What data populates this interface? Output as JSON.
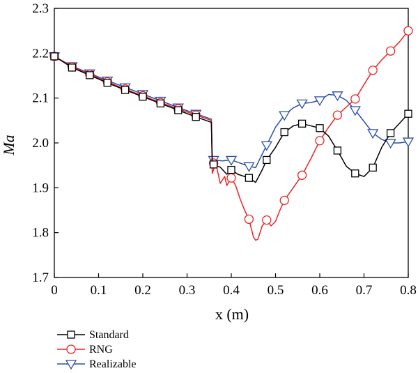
{
  "chart_data": {
    "type": "line",
    "title": "",
    "xlabel": "x (m)",
    "ylabel": "Ma",
    "xlim": [
      0,
      0.8
    ],
    "ylim": [
      1.7,
      2.3
    ],
    "x_ticks": [
      "0",
      "0.1",
      "0.2",
      "0.3",
      "0.4",
      "0.5",
      "0.6",
      "0.7",
      "0.8"
    ],
    "y_ticks": [
      "1.7",
      "1.8",
      "1.9",
      "2.0",
      "2.1",
      "2.2",
      "2.3"
    ],
    "grid": false,
    "legend_position": "below-left",
    "series": [
      {
        "name": "Standard",
        "color": "#000000",
        "marker": "square",
        "line": [
          [
            0,
            2.193
          ],
          [
            0.04,
            2.168
          ],
          [
            0.08,
            2.151
          ],
          [
            0.12,
            2.134
          ],
          [
            0.16,
            2.118
          ],
          [
            0.2,
            2.103
          ],
          [
            0.24,
            2.088
          ],
          [
            0.28,
            2.073
          ],
          [
            0.32,
            2.058
          ],
          [
            0.355,
            2.046
          ],
          [
            0.357,
            1.952
          ],
          [
            0.375,
            1.946
          ],
          [
            0.39,
            1.93
          ],
          [
            0.4,
            1.94
          ],
          [
            0.415,
            1.93
          ],
          [
            0.44,
            1.922
          ],
          [
            0.455,
            1.912
          ],
          [
            0.47,
            1.94
          ],
          [
            0.48,
            1.962
          ],
          [
            0.5,
            1.99
          ],
          [
            0.52,
            2.024
          ],
          [
            0.54,
            2.038
          ],
          [
            0.56,
            2.043
          ],
          [
            0.6,
            2.033
          ],
          [
            0.62,
            2.015
          ],
          [
            0.64,
            1.983
          ],
          [
            0.66,
            1.948
          ],
          [
            0.68,
            1.932
          ],
          [
            0.7,
            1.925
          ],
          [
            0.72,
            1.945
          ],
          [
            0.74,
            1.99
          ],
          [
            0.76,
            2.022
          ],
          [
            0.8,
            2.065
          ]
        ],
        "markers": [
          [
            0,
            2.193
          ],
          [
            0.04,
            2.168
          ],
          [
            0.08,
            2.151
          ],
          [
            0.12,
            2.134
          ],
          [
            0.16,
            2.118
          ],
          [
            0.2,
            2.103
          ],
          [
            0.24,
            2.088
          ],
          [
            0.28,
            2.073
          ],
          [
            0.32,
            2.058
          ],
          [
            0.36,
            1.952
          ],
          [
            0.4,
            1.94
          ],
          [
            0.44,
            1.922
          ],
          [
            0.48,
            1.962
          ],
          [
            0.52,
            2.024
          ],
          [
            0.56,
            2.043
          ],
          [
            0.6,
            2.033
          ],
          [
            0.64,
            1.983
          ],
          [
            0.68,
            1.932
          ],
          [
            0.72,
            1.945
          ],
          [
            0.76,
            2.022
          ],
          [
            0.8,
            2.065
          ]
        ]
      },
      {
        "name": "RNG",
        "color": "#ee2222",
        "marker": "circle",
        "line": [
          [
            0,
            2.193
          ],
          [
            0.04,
            2.17
          ],
          [
            0.08,
            2.153
          ],
          [
            0.12,
            2.136
          ],
          [
            0.16,
            2.12
          ],
          [
            0.2,
            2.105
          ],
          [
            0.24,
            2.09
          ],
          [
            0.28,
            2.076
          ],
          [
            0.32,
            2.062
          ],
          [
            0.355,
            2.05
          ],
          [
            0.357,
            1.932
          ],
          [
            0.365,
            1.955
          ],
          [
            0.375,
            1.91
          ],
          [
            0.385,
            1.925
          ],
          [
            0.39,
            1.905
          ],
          [
            0.4,
            1.922
          ],
          [
            0.41,
            1.905
          ],
          [
            0.42,
            1.875
          ],
          [
            0.43,
            1.85
          ],
          [
            0.44,
            1.83
          ],
          [
            0.45,
            1.79
          ],
          [
            0.455,
            1.783
          ],
          [
            0.46,
            1.785
          ],
          [
            0.47,
            1.815
          ],
          [
            0.48,
            1.828
          ],
          [
            0.49,
            1.815
          ],
          [
            0.5,
            1.825
          ],
          [
            0.51,
            1.85
          ],
          [
            0.52,
            1.872
          ],
          [
            0.54,
            1.9
          ],
          [
            0.56,
            1.928
          ],
          [
            0.58,
            1.965
          ],
          [
            0.6,
            2.005
          ],
          [
            0.62,
            2.035
          ],
          [
            0.64,
            2.062
          ],
          [
            0.66,
            2.08
          ],
          [
            0.68,
            2.098
          ],
          [
            0.7,
            2.13
          ],
          [
            0.72,
            2.162
          ],
          [
            0.74,
            2.185
          ],
          [
            0.76,
            2.205
          ],
          [
            0.78,
            2.225
          ],
          [
            0.8,
            2.25
          ]
        ],
        "markers": [
          [
            0,
            2.193
          ],
          [
            0.04,
            2.17
          ],
          [
            0.08,
            2.153
          ],
          [
            0.12,
            2.136
          ],
          [
            0.16,
            2.12
          ],
          [
            0.2,
            2.105
          ],
          [
            0.24,
            2.09
          ],
          [
            0.28,
            2.076
          ],
          [
            0.32,
            2.062
          ],
          [
            0.36,
            1.955
          ],
          [
            0.4,
            1.922
          ],
          [
            0.44,
            1.83
          ],
          [
            0.48,
            1.828
          ],
          [
            0.52,
            1.872
          ],
          [
            0.56,
            1.928
          ],
          [
            0.6,
            2.005
          ],
          [
            0.64,
            2.062
          ],
          [
            0.68,
            2.098
          ],
          [
            0.72,
            2.162
          ],
          [
            0.76,
            2.205
          ],
          [
            0.8,
            2.25
          ]
        ]
      },
      {
        "name": "Realizable",
        "color": "#2b4fa8",
        "marker": "triangle-down",
        "line": [
          [
            0,
            2.193
          ],
          [
            0.04,
            2.171
          ],
          [
            0.08,
            2.155
          ],
          [
            0.12,
            2.139
          ],
          [
            0.16,
            2.124
          ],
          [
            0.2,
            2.109
          ],
          [
            0.24,
            2.094
          ],
          [
            0.28,
            2.079
          ],
          [
            0.32,
            2.065
          ],
          [
            0.355,
            2.053
          ],
          [
            0.357,
            1.962
          ],
          [
            0.38,
            1.96
          ],
          [
            0.4,
            1.962
          ],
          [
            0.42,
            1.955
          ],
          [
            0.44,
            1.948
          ],
          [
            0.455,
            1.945
          ],
          [
            0.47,
            1.975
          ],
          [
            0.48,
            1.995
          ],
          [
            0.5,
            2.035
          ],
          [
            0.52,
            2.062
          ],
          [
            0.54,
            2.078
          ],
          [
            0.56,
            2.088
          ],
          [
            0.58,
            2.09
          ],
          [
            0.6,
            2.095
          ],
          [
            0.62,
            2.108
          ],
          [
            0.64,
            2.106
          ],
          [
            0.66,
            2.095
          ],
          [
            0.68,
            2.073
          ],
          [
            0.7,
            2.048
          ],
          [
            0.72,
            2.022
          ],
          [
            0.74,
            2.008
          ],
          [
            0.76,
            2.0
          ],
          [
            0.78,
            2.0
          ],
          [
            0.8,
            2.003
          ]
        ],
        "markers": [
          [
            0,
            2.193
          ],
          [
            0.04,
            2.171
          ],
          [
            0.08,
            2.155
          ],
          [
            0.12,
            2.139
          ],
          [
            0.16,
            2.124
          ],
          [
            0.2,
            2.109
          ],
          [
            0.24,
            2.094
          ],
          [
            0.28,
            2.079
          ],
          [
            0.32,
            2.065
          ],
          [
            0.36,
            1.962
          ],
          [
            0.4,
            1.962
          ],
          [
            0.44,
            1.948
          ],
          [
            0.48,
            1.995
          ],
          [
            0.52,
            2.062
          ],
          [
            0.56,
            2.088
          ],
          [
            0.6,
            2.095
          ],
          [
            0.64,
            2.106
          ],
          [
            0.68,
            2.073
          ],
          [
            0.72,
            2.022
          ],
          [
            0.76,
            2.0
          ],
          [
            0.8,
            2.003
          ]
        ]
      }
    ]
  }
}
